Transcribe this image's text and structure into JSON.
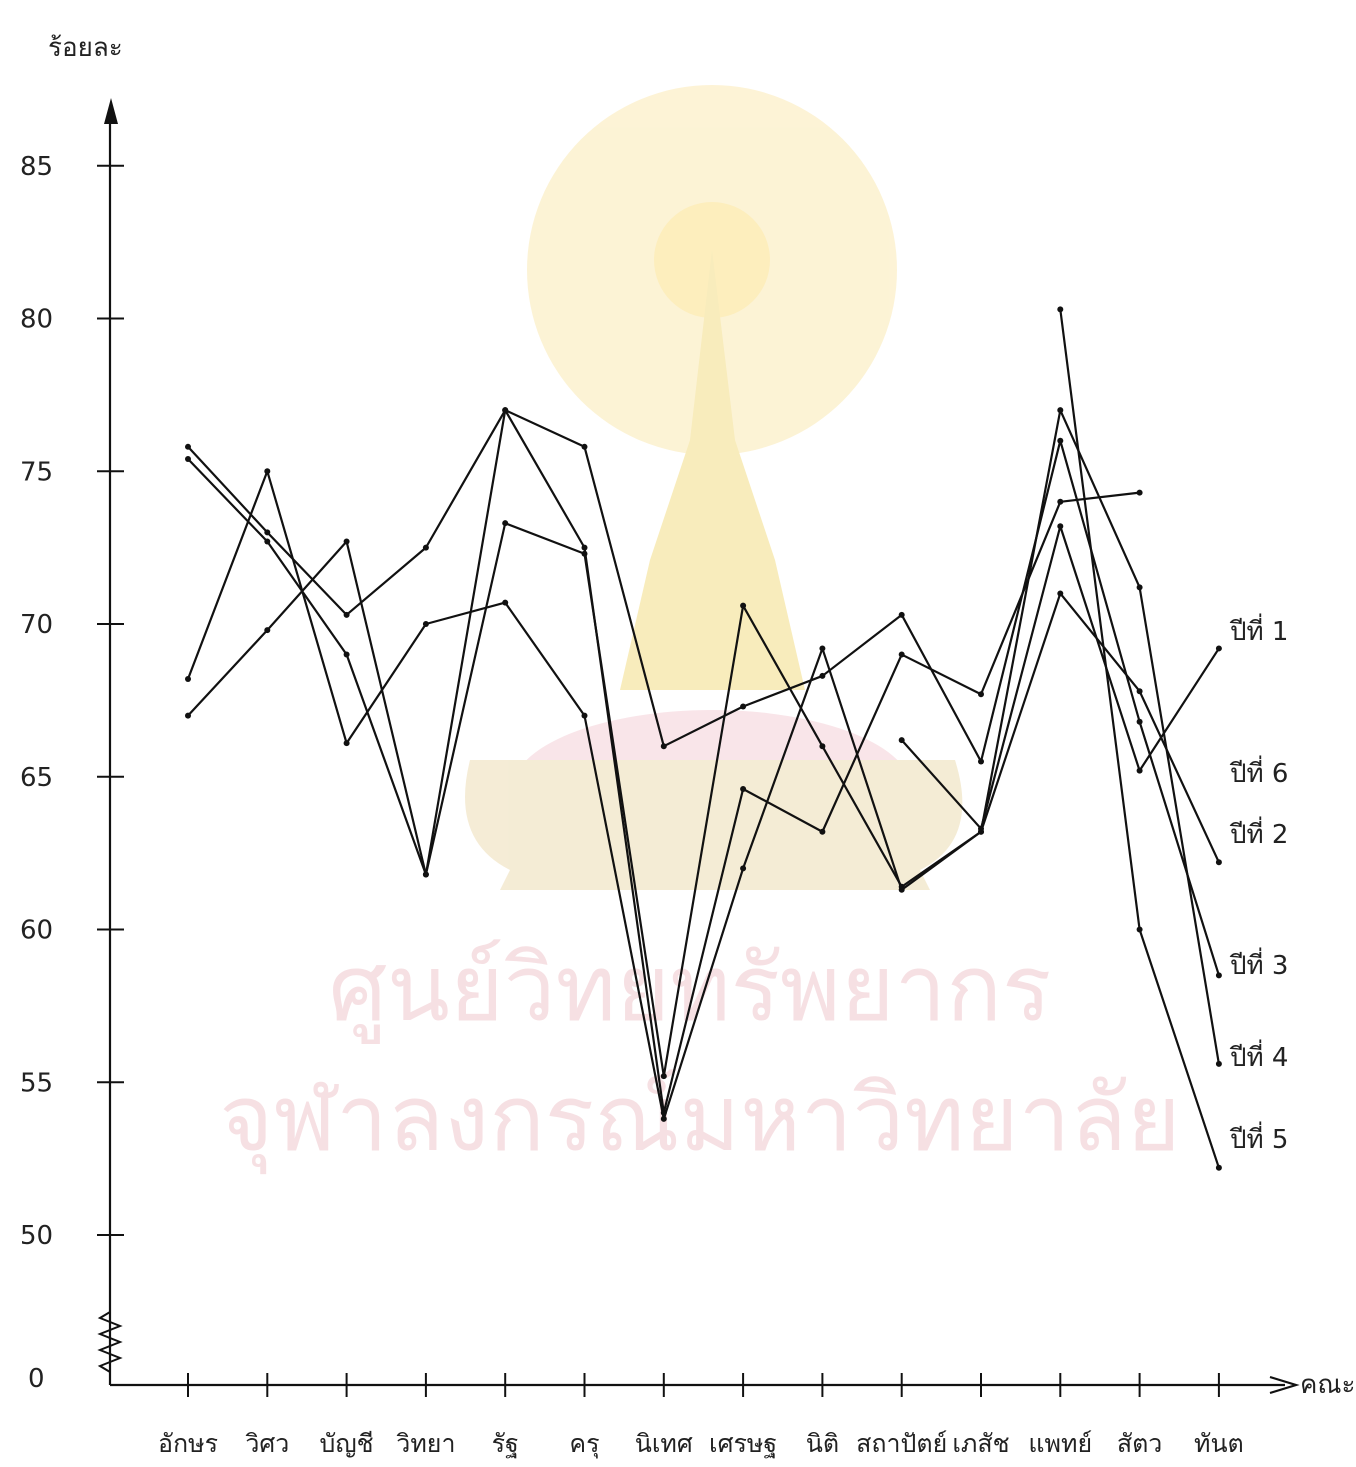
{
  "chart_data": {
    "type": "line",
    "ylabel": "ร้อยละ",
    "xlabel": "คณะ",
    "y_tick_labels": [
      "0",
      "50",
      "55",
      "60",
      "65",
      "70",
      "75",
      "80",
      "85"
    ],
    "ylim": [
      50,
      86
    ],
    "y_axis_break": true,
    "categories": [
      "อักษร",
      "วิศว",
      "บัญชี",
      "วิทยา",
      "รัฐ",
      "ครุ",
      "นิเทศ",
      "เศรษฐ",
      "นิติ",
      "สถาปัตย์",
      "เภสัช",
      "แพทย์",
      "สัตว",
      "ทันต"
    ],
    "series": [
      {
        "name": "ปีที่ 1",
        "values": [
          75.4,
          72.7,
          69.0,
          61.8,
          77.0,
          72.5,
          54.0,
          64.6,
          63.2,
          69.0,
          67.7,
          74.0,
          74.3,
          null
        ]
      },
      {
        "name": "ปีที่ 2",
        "values": [
          67.0,
          69.8,
          72.7,
          61.8,
          73.3,
          72.3,
          55.2,
          70.6,
          66.0,
          61.4,
          63.2,
          71.0,
          67.8,
          62.2
        ]
      },
      {
        "name": "ปีที่ 3",
        "values": [
          75.8,
          73.0,
          70.3,
          72.5,
          77.0,
          75.8,
          66.0,
          67.3,
          68.3,
          70.3,
          65.5,
          76.0,
          66.8,
          58.5
        ]
      },
      {
        "name": "ปีที่ 4",
        "values": [
          68.2,
          75.0,
          66.1,
          70.0,
          70.7,
          67.0,
          53.8,
          62.0,
          69.2,
          61.3,
          63.2,
          77.0,
          71.2,
          55.6
        ]
      },
      {
        "name": "ปีที่ 5",
        "values": [
          null,
          null,
          null,
          null,
          null,
          null,
          null,
          null,
          null,
          null,
          null,
          80.3,
          60.0,
          52.2
        ]
      },
      {
        "name": "ปีที่ 6",
        "values": [
          null,
          null,
          null,
          null,
          null,
          null,
          null,
          null,
          null,
          66.2,
          63.3,
          73.2,
          65.2,
          69.2
        ]
      }
    ],
    "series_end_labels": [
      "ปีที่  1",
      "ปีที่  6",
      "ปีที่  2",
      "ปีที่  3",
      "ปีที่  4",
      "ปีที่  5"
    ],
    "grid": false,
    "legend": "labels at right end of lines"
  },
  "watermark": {
    "line1": "ศูนย์วิทยทรัพยากร",
    "line2": "จุฬาลงกรณ์มหาวิทยาลัย",
    "emblem_icon": "phra-kiao-emblem-icon"
  }
}
